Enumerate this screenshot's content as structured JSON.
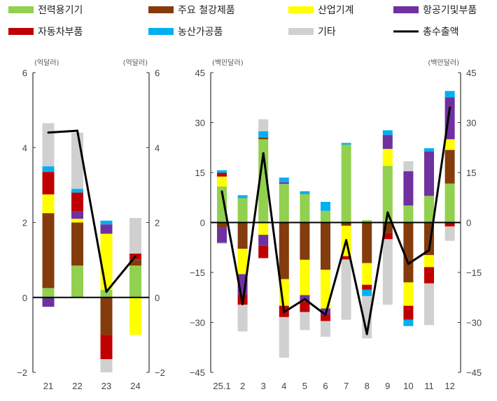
{
  "legend": {
    "position": "top",
    "items": [
      {
        "label": "전력용기기",
        "color": "#92d050",
        "kind": "bar"
      },
      {
        "label": "주요 철강제품",
        "color": "#843c0c",
        "kind": "bar"
      },
      {
        "label": "산업기계",
        "color": "#ffff00",
        "kind": "bar"
      },
      {
        "label": "항공기및부품",
        "color": "#7030a0",
        "kind": "bar"
      },
      {
        "label": "자동차부품",
        "color": "#c00000",
        "kind": "bar"
      },
      {
        "label": "농산가공품",
        "color": "#00b0f0",
        "kind": "bar"
      },
      {
        "label": "기타",
        "color": "#d0d0d0",
        "kind": "bar"
      },
      {
        "label": "총수출액",
        "color": "#000000",
        "kind": "line"
      }
    ]
  },
  "chart_data": [
    {
      "type": "bar",
      "stacked": true,
      "unit_left": "(억달러)",
      "unit_right": "(억달러)",
      "ylim": [
        -2,
        6
      ],
      "yticks": [
        "6",
        "4",
        "2",
        "0",
        "−2"
      ],
      "ytick_values": [
        6,
        4,
        2,
        0,
        -2
      ],
      "categories": [
        "21",
        "22",
        "23",
        "24"
      ],
      "series": [
        {
          "name": "전력용기기",
          "values": [
            0.25,
            0.85,
            0.2,
            0.85
          ]
        },
        {
          "name": "주요 철강제품",
          "values": [
            2.0,
            1.15,
            -1.0,
            0.15
          ]
        },
        {
          "name": "산업기계",
          "values": [
            0.5,
            0.1,
            1.5,
            -1.0
          ]
        },
        {
          "name": "항공기및부품",
          "values": [
            -0.25,
            0.2,
            0.25,
            0.02
          ]
        },
        {
          "name": "자동차부품",
          "values": [
            0.6,
            0.5,
            -0.65,
            0.15
          ]
        },
        {
          "name": "농산가공품",
          "values": [
            0.15,
            0.1,
            0.1,
            0
          ]
        },
        {
          "name": "기타",
          "values": [
            1.15,
            1.5,
            -0.35,
            0.95
          ]
        }
      ],
      "line": {
        "name": "총수출액",
        "values": [
          4.4,
          4.45,
          0.15,
          1.1
        ]
      }
    },
    {
      "type": "bar",
      "stacked": true,
      "unit_left": "(백만달러)",
      "unit_right": "(백만달러)",
      "ylim": [
        -45,
        45
      ],
      "yticks": [
        "45",
        "30",
        "15",
        "0",
        "−15",
        "−30",
        "−45"
      ],
      "ytick_values": [
        45,
        30,
        15,
        0,
        -15,
        -30,
        -45
      ],
      "categories": [
        "25.1",
        "2",
        "3",
        "4",
        "5",
        "6",
        "7",
        "8",
        "9",
        "10",
        "11",
        "12"
      ],
      "series": [
        {
          "name": "전력용기기",
          "values": [
            10.8,
            7.3,
            25,
            11.6,
            8.5,
            3.5,
            23.4,
            0.7,
            17,
            5.1,
            8,
            11.7
          ]
        },
        {
          "name": "주요 철강제품",
          "values": [
            -1.6,
            -7.9,
            0.5,
            -17,
            -11.2,
            -14.2,
            -1,
            -12.2,
            -3.1,
            -18,
            -9.8,
            10.1
          ]
        },
        {
          "name": "산업기계",
          "values": [
            3,
            -7.6,
            -3.7,
            -8,
            -10.6,
            -11.6,
            -9.1,
            -6.5,
            5.1,
            -7,
            -3.6,
            3.2
          ]
        },
        {
          "name": "항공기및부품",
          "values": [
            -4.5,
            -6.2,
            -3.3,
            0.5,
            -2,
            -1.9,
            0,
            0,
            4.2,
            10.3,
            13.3,
            12.6
          ]
        },
        {
          "name": "자동차부품",
          "values": [
            1.1,
            -3,
            -3.7,
            -3.4,
            -3.1,
            -1.9,
            -1,
            -1.5,
            -1.9,
            -4.2,
            -4.9,
            -1.2
          ]
        },
        {
          "name": "농산가공품",
          "values": [
            0.8,
            0.9,
            1.9,
            1.4,
            0.9,
            2.7,
            0.5,
            -1.9,
            1.4,
            -1.9,
            1,
            1.9
          ]
        },
        {
          "name": "기타",
          "values": [
            -0.3,
            -8,
            3.6,
            -12.2,
            -5.4,
            -4.7,
            -18.1,
            -12.7,
            -19.7,
            3,
            -12.5,
            -4.3
          ]
        }
      ],
      "line": {
        "name": "총수출액",
        "values": [
          9.3,
          -24.5,
          20.8,
          -26.9,
          -23,
          -27.7,
          -5.3,
          -33.5,
          3,
          -12.4,
          -8.3,
          34.5
        ]
      }
    }
  ]
}
